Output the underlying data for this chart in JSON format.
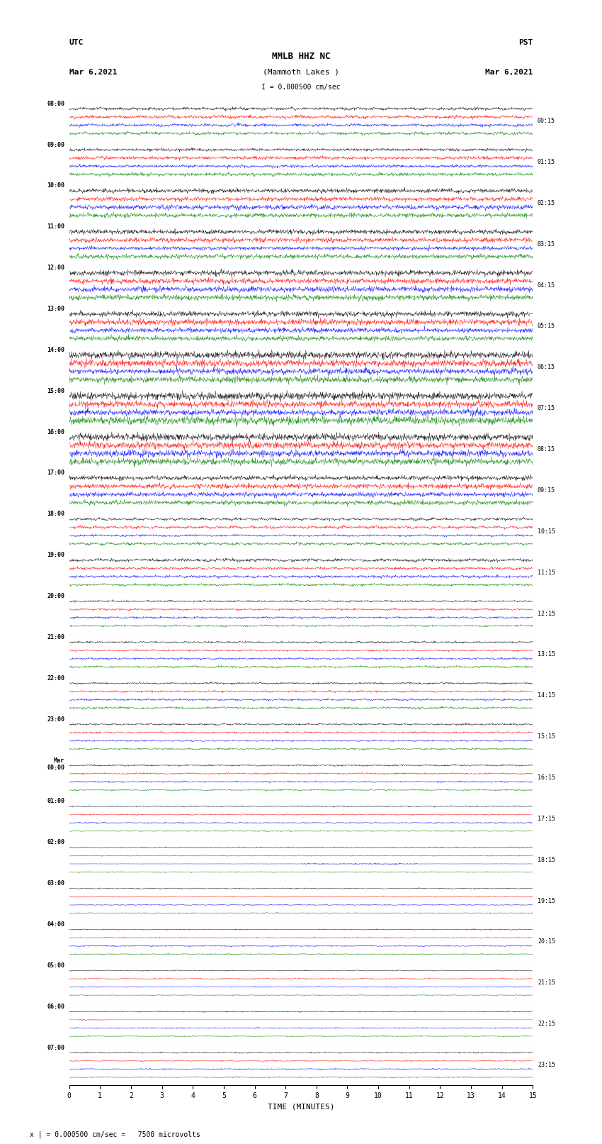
{
  "title_line1": "MMLB HHZ NC",
  "title_line2": "(Mammoth Lakes )",
  "scale_label": "I = 0.000500 cm/sec",
  "footer_label": "x | = 0.000500 cm/sec =   7500 microvolts",
  "utc_label": "UTC",
  "pst_label": "PST",
  "date_left": "Mar 6,2021",
  "date_right": "Mar 6,2021",
  "xlabel": "TIME (MINUTES)",
  "left_times": [
    "08:00",
    "09:00",
    "10:00",
    "11:00",
    "12:00",
    "13:00",
    "14:00",
    "15:00",
    "16:00",
    "17:00",
    "18:00",
    "19:00",
    "20:00",
    "21:00",
    "22:00",
    "23:00",
    "Mar\n00:00",
    "01:00",
    "02:00",
    "03:00",
    "04:00",
    "05:00",
    "06:00",
    "07:00"
  ],
  "right_times": [
    "00:15",
    "01:15",
    "02:15",
    "03:15",
    "04:15",
    "05:15",
    "06:15",
    "07:15",
    "08:15",
    "09:15",
    "10:15",
    "11:15",
    "12:15",
    "13:15",
    "14:15",
    "15:15",
    "16:15",
    "17:15",
    "18:15",
    "19:15",
    "20:15",
    "21:15",
    "22:15",
    "23:15"
  ],
  "colors": [
    "black",
    "red",
    "blue",
    "green"
  ],
  "n_rows": 24,
  "traces_per_row": 4,
  "bg_color": "white",
  "xmin": 0,
  "xmax": 15,
  "xticks": [
    0,
    1,
    2,
    3,
    4,
    5,
    6,
    7,
    8,
    9,
    10,
    11,
    12,
    13,
    14,
    15
  ]
}
